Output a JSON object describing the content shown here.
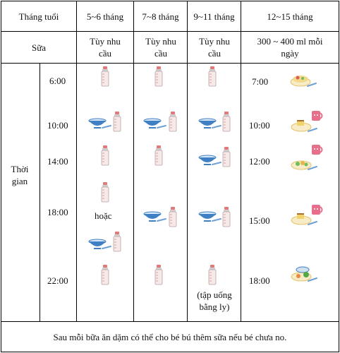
{
  "table": {
    "headers": [
      "Tháng tuổi",
      "5~6 tháng",
      "7~8 tháng",
      "9~11 tháng",
      "12~15 tháng"
    ],
    "milk_label": "Sữa",
    "milk_values": [
      "Tùy nhu cầu",
      "Tùy nhu cầu",
      "Tùy nhu cầu",
      "300 ~ 400 ml mỗi ngày"
    ],
    "time_label": "Thời gian",
    "times": [
      "6:00",
      "10:00",
      "14:00",
      "18:00",
      "22:00"
    ],
    "times_12_15": [
      "7:00",
      "10:00",
      "12:00",
      "15:00",
      "18:00"
    ],
    "or_text": "hoặc",
    "cup_note": "(tập uống bằng ly)",
    "footer": "Sau mỗi bữa ăn dặm có thể cho bé bú thêm sữa nếu bé chưa no."
  },
  "icons": {
    "bottle": "baby-bottle-icon",
    "bowl": "bowl-and-spoon-icon",
    "meal": "plate-meal-icon",
    "cup": "cup-icon"
  },
  "colors": {
    "bottle_milk": "#f6e9e8",
    "bottle_cap": "#e07a7a",
    "bowl": "#3f7fc4",
    "cup": "#e86f8b",
    "grid": "#000000"
  }
}
